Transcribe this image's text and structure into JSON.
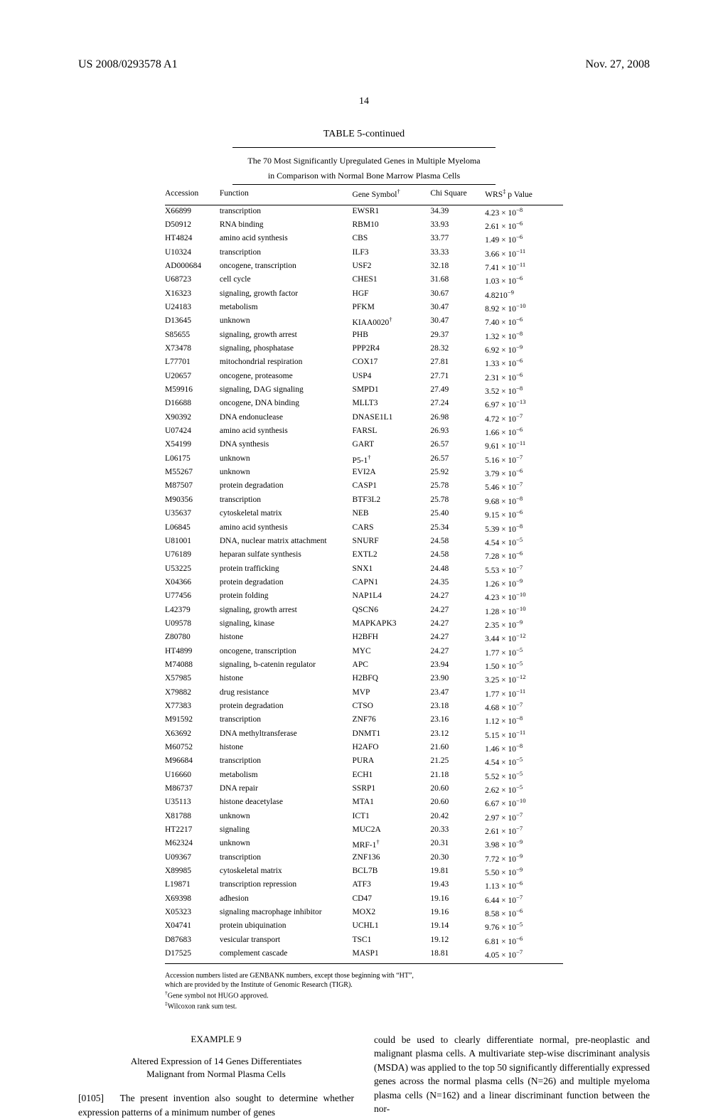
{
  "header": {
    "left": "US 2008/0293578 A1",
    "right": "Nov. 27, 2008"
  },
  "page_number_top": "14",
  "table": {
    "title": "TABLE 5-continued",
    "subtitle_line1": "The 70 Most Significantly Upregulated Genes in Multiple Myeloma",
    "subtitle_line2": "in Comparison with Normal Bone Marrow Plasma Cells",
    "columns": [
      "Accession",
      "Function",
      "Gene Symbol",
      "Chi Square",
      "WRS",
      " p Value"
    ],
    "col3_sup": "†",
    "col5_sup": "‡",
    "rows": [
      {
        "a": "X66899",
        "f": "transcription",
        "g": "EWSR1",
        "c": "34.39",
        "m": "4.23",
        "e": "−8"
      },
      {
        "a": "D50912",
        "f": "RNA binding",
        "g": "RBM10",
        "c": "33.93",
        "m": "2.61",
        "e": "−6"
      },
      {
        "a": "HT4824",
        "f": "amino acid synthesis",
        "g": "CBS",
        "c": "33.77",
        "m": "1.49",
        "e": "−6"
      },
      {
        "a": "U10324",
        "f": "transcription",
        "g": "ILF3",
        "c": "33.33",
        "m": "3.66",
        "e": "−11"
      },
      {
        "a": "AD000684",
        "f": "oncogene, transcription",
        "g": "USF2",
        "c": "32.18",
        "m": "7.41",
        "e": "−11"
      },
      {
        "a": "U68723",
        "f": "cell cycle",
        "g": "CHES1",
        "c": "31.68",
        "m": "1.03",
        "e": "−6"
      },
      {
        "a": "X16323",
        "f": "signaling, growth factor",
        "g": "HGF",
        "c": "30.67",
        "m": "4.82",
        "raw": "4.8210",
        "e": "−9"
      },
      {
        "a": "U24183",
        "f": "metabolism",
        "g": "PFKM",
        "c": "30.47",
        "m": "8.92",
        "e": "−10"
      },
      {
        "a": "D13645",
        "f": "unknown",
        "g": "KIAA0020",
        "gsup": "†",
        "c": "30.47",
        "m": "7.40",
        "e": "−6"
      },
      {
        "a": "S85655",
        "f": "signaling, growth arrest",
        "g": "PHB",
        "c": "29.37",
        "m": "1.32",
        "e": "−8"
      },
      {
        "a": "X73478",
        "f": "signaling, phosphatase",
        "g": "PPP2R4",
        "c": "28.32",
        "m": "6.92",
        "e": "−9"
      },
      {
        "a": "L77701",
        "f": "mitochondrial respiration",
        "g": "COX17",
        "c": "27.81",
        "m": "1.33",
        "e": "−6"
      },
      {
        "a": "U20657",
        "f": "oncogene, proteasome",
        "g": "USP4",
        "c": "27.71",
        "m": "2.31",
        "e": "−6"
      },
      {
        "a": "M59916",
        "f": "signaling, DAG signaling",
        "g": "SMPD1",
        "c": "27.49",
        "m": "3.52",
        "e": "−8"
      },
      {
        "a": "D16688",
        "f": "oncogene, DNA binding",
        "g": "MLLT3",
        "c": "27.24",
        "m": "6.97",
        "e": "−13"
      },
      {
        "a": "X90392",
        "f": "DNA endonuclease",
        "g": "DNASE1L1",
        "c": "26.98",
        "m": "4.72",
        "e": "−7"
      },
      {
        "a": "U07424",
        "f": "amino acid synthesis",
        "g": "FARSL",
        "c": "26.93",
        "m": "1.66",
        "e": "−6"
      },
      {
        "a": "X54199",
        "f": "DNA synthesis",
        "g": "GART",
        "c": "26.57",
        "m": "9.61",
        "e": "−11"
      },
      {
        "a": "L06175",
        "f": "unknown",
        "g": "P5-1",
        "gsup": "†",
        "c": "26.57",
        "m": "5.16",
        "e": "−7"
      },
      {
        "a": "M55267",
        "f": "unknown",
        "g": "EVI2A",
        "c": "25.92",
        "m": "3.79",
        "e": "−6"
      },
      {
        "a": "M87507",
        "f": "protein degradation",
        "g": "CASP1",
        "c": "25.78",
        "m": "5.46",
        "e": "−7"
      },
      {
        "a": "M90356",
        "f": "transcription",
        "g": "BTF3L2",
        "c": "25.78",
        "m": "9.68",
        "e": "−8"
      },
      {
        "a": "U35637",
        "f": "cytoskeletal matrix",
        "g": "NEB",
        "c": "25.40",
        "m": "9.15",
        "e": "−6"
      },
      {
        "a": "L06845",
        "f": "amino acid synthesis",
        "g": "CARS",
        "c": "25.34",
        "m": "5.39",
        "e": "−8"
      },
      {
        "a": "U81001",
        "f": "DNA, nuclear matrix attachment",
        "g": "SNURF",
        "c": "24.58",
        "m": "4.54",
        "e": "−5"
      },
      {
        "a": "U76189",
        "f": "heparan sulfate synthesis",
        "g": "EXTL2",
        "c": "24.58",
        "m": "7.28",
        "e": "−6"
      },
      {
        "a": "U53225",
        "f": "protein trafficking",
        "g": "SNX1",
        "c": "24.48",
        "m": "5.53",
        "e": "−7"
      },
      {
        "a": "X04366",
        "f": "protein degradation",
        "g": "CAPN1",
        "c": "24.35",
        "m": "1.26",
        "e": "−9"
      },
      {
        "a": "U77456",
        "f": "protein folding",
        "g": "NAP1L4",
        "c": "24.27",
        "m": "4.23",
        "e": "−10"
      },
      {
        "a": "L42379",
        "f": "signaling, growth arrest",
        "g": "QSCN6",
        "c": "24.27",
        "m": "1.28",
        "e": "−10"
      },
      {
        "a": "U09578",
        "f": "signaling, kinase",
        "g": "MAPKAPK3",
        "c": "24.27",
        "m": "2.35",
        "e": "−9"
      },
      {
        "a": "Z80780",
        "f": "histone",
        "g": "H2BFH",
        "c": "24.27",
        "m": "3.44",
        "e": "−12"
      },
      {
        "a": "HT4899",
        "f": "oncogene, transcription",
        "g": "MYC",
        "c": "24.27",
        "m": "1.77",
        "e": "−5"
      },
      {
        "a": "M74088",
        "f": "signaling, b-catenin regulator",
        "g": "APC",
        "c": "23.94",
        "m": "1.50",
        "e": "−5"
      },
      {
        "a": "X57985",
        "f": "histone",
        "g": "H2BFQ",
        "c": "23.90",
        "m": "3.25",
        "e": "−12"
      },
      {
        "a": "X79882",
        "f": "drug resistance",
        "g": "MVP",
        "c": "23.47",
        "m": "1.77",
        "e": "−11"
      },
      {
        "a": "X77383",
        "f": "protein degradation",
        "g": "CTSO",
        "c": "23.18",
        "m": "4.68",
        "e": "−7"
      },
      {
        "a": "M91592",
        "f": "transcription",
        "g": "ZNF76",
        "c": "23.16",
        "m": "1.12",
        "e": "−8"
      },
      {
        "a": "X63692",
        "f": "DNA methyltransferase",
        "g": "DNMT1",
        "c": "23.12",
        "m": "5.15",
        "e": "−11"
      },
      {
        "a": "M60752",
        "f": "histone",
        "g": "H2AFO",
        "c": "21.60",
        "m": "1.46",
        "e": "−8"
      },
      {
        "a": "M96684",
        "f": "transcription",
        "g": "PURA",
        "c": "21.25",
        "m": "4.54",
        "e": "−5"
      },
      {
        "a": "U16660",
        "f": "metabolism",
        "g": "ECH1",
        "c": "21.18",
        "m": "5.52",
        "e": "−5"
      },
      {
        "a": "M86737",
        "f": "DNA repair",
        "g": "SSRP1",
        "c": "20.60",
        "m": "2.62",
        "e": "−5"
      },
      {
        "a": "U35113",
        "f": "histone deacetylase",
        "g": "MTA1",
        "c": "20.60",
        "m": "6.67",
        "e": "−10"
      },
      {
        "a": "X81788",
        "f": "unknown",
        "g": "ICT1",
        "c": "20.42",
        "m": "2.97",
        "e": "−7"
      },
      {
        "a": "HT2217",
        "f": "signaling",
        "g": "MUC2A",
        "c": "20.33",
        "m": "2.61",
        "e": "−7"
      },
      {
        "a": "M62324",
        "f": "unknown",
        "g": "MRF-1",
        "gsup": "†",
        "c": "20.31",
        "m": "3.98",
        "e": "−9"
      },
      {
        "a": "U09367",
        "f": "transcription",
        "g": "ZNF136",
        "c": "20.30",
        "m": "7.72",
        "e": "−9"
      },
      {
        "a": "X89985",
        "f": "cytoskeletal matrix",
        "g": "BCL7B",
        "c": "19.81",
        "m": "5.50",
        "e": "−9"
      },
      {
        "a": "L19871",
        "f": "transcription repression",
        "g": "ATF3",
        "c": "19.43",
        "m": "1.13",
        "e": "−6"
      },
      {
        "a": "X69398",
        "f": "adhesion",
        "g": "CD47",
        "c": "19.16",
        "m": "6.44",
        "e": "−7"
      },
      {
        "a": "X05323",
        "f": "signaling macrophage inhibitor",
        "g": "MOX2",
        "c": "19.16",
        "m": "8.58",
        "e": "−6"
      },
      {
        "a": "X04741",
        "f": "protein ubiquination",
        "g": "UCHL1",
        "c": "19.14",
        "m": "9.76",
        "e": "−5"
      },
      {
        "a": "D87683",
        "f": "vesicular transport",
        "g": "TSC1",
        "c": "19.12",
        "m": "6.81",
        "e": "−6"
      },
      {
        "a": "D17525",
        "f": "complement cascade",
        "g": "MASP1",
        "c": "18.81",
        "m": "4.05",
        "e": "−7"
      }
    ],
    "footnotes": [
      "Accession numbers listed are GENBANK numbers, except those beginning with “HT”,",
      "which are provided by the Institute of Genomic Research (TIGR).",
      "†Gene symbol not HUGO approved.",
      "‡Wilcoxon rank sum test."
    ]
  },
  "example": {
    "label": "EXAMPLE 9",
    "title_line1": "Altered Expression of 14 Genes Differentiates",
    "title_line2": "Malignant from Normal Plasma Cells",
    "para_num": "[0105]",
    "left_text": "The present invention also sought to determine whether expression patterns of a minimum number of genes",
    "right_text": "could be used to clearly differentiate normal, pre-neoplastic and malignant plasma cells. A multivariate step-wise discriminant analysis (MSDA) was applied to the top 50 significantly differentially expressed genes across the normal plasma cells (N=26) and multiple myeloma plasma cells (N=162) and a linear discriminant function between the nor-"
  }
}
